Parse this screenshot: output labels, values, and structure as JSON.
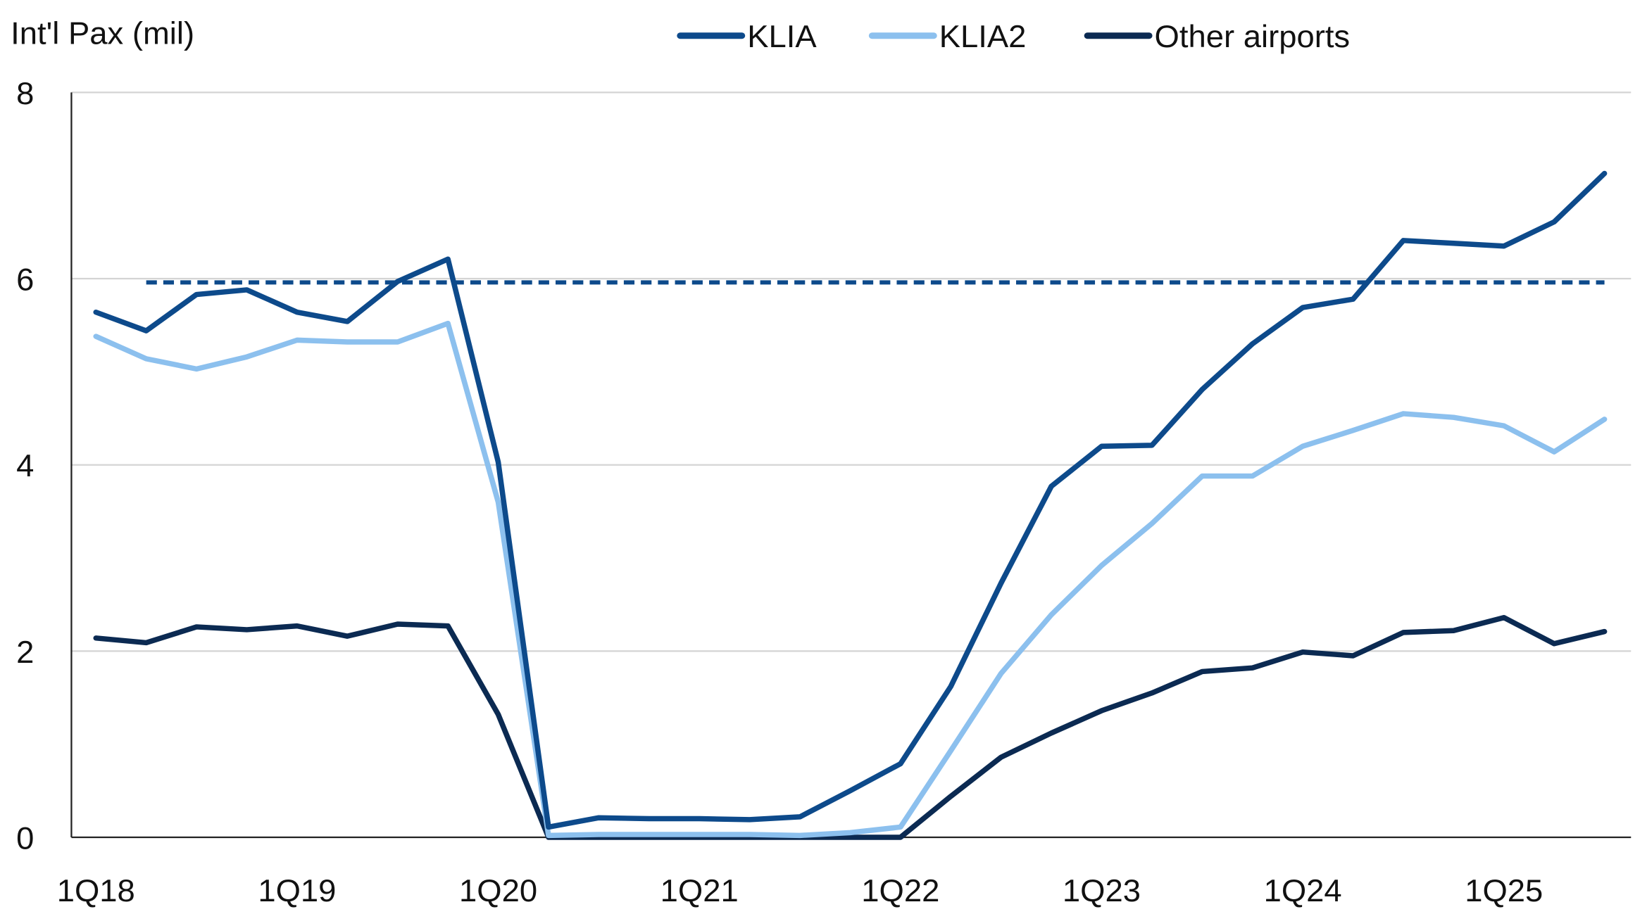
{
  "chart_data": {
    "type": "line",
    "title": "",
    "ylabel": "Int'l Pax (mil)",
    "xlabel": "",
    "ylim": [
      0,
      8
    ],
    "yticks": [
      0,
      2,
      4,
      6,
      8
    ],
    "grid": true,
    "legend_position": "top-center",
    "x": [
      "1Q18",
      "2Q18",
      "3Q18",
      "4Q18",
      "1Q19",
      "2Q19",
      "3Q19",
      "4Q19",
      "1Q20",
      "2Q20",
      "3Q20",
      "4Q20",
      "1Q21",
      "2Q21",
      "3Q21",
      "4Q21",
      "1Q22",
      "2Q22",
      "3Q22",
      "4Q22",
      "1Q23",
      "2Q23",
      "3Q23",
      "4Q23",
      "1Q24",
      "2Q24",
      "3Q24",
      "4Q24",
      "1Q25",
      "2Q25",
      "3Q25"
    ],
    "xtick_labels": [
      "1Q18",
      "1Q19",
      "1Q20",
      "1Q21",
      "1Q22",
      "1Q23",
      "1Q24",
      "1Q25"
    ],
    "series": [
      {
        "name": "KLIA",
        "color": "#0d4a8b",
        "values": [
          5.64,
          5.44,
          5.83,
          5.88,
          5.64,
          5.54,
          5.97,
          6.21,
          4.03,
          0.11,
          0.21,
          0.2,
          0.2,
          0.19,
          0.22,
          0.5,
          0.79,
          1.62,
          2.73,
          3.77,
          4.2,
          4.21,
          4.81,
          5.3,
          5.69,
          5.78,
          6.41,
          6.38,
          6.35,
          6.61,
          7.13
        ]
      },
      {
        "name": "KLIA2",
        "color": "#8cc0ee",
        "values": [
          5.38,
          5.14,
          5.03,
          5.16,
          5.34,
          5.32,
          5.32,
          5.52,
          3.6,
          0.02,
          0.03,
          0.03,
          0.03,
          0.03,
          0.02,
          0.05,
          0.11,
          0.93,
          1.76,
          2.39,
          2.92,
          3.37,
          3.88,
          3.88,
          4.2,
          4.37,
          4.55,
          4.51,
          4.42,
          4.14,
          4.49
        ]
      },
      {
        "name": "Other airports",
        "color": "#0b2a52",
        "values": [
          2.14,
          2.09,
          2.26,
          2.23,
          2.27,
          2.16,
          2.29,
          2.27,
          1.32,
          0,
          0,
          0,
          0,
          0,
          0,
          0,
          0,
          0.44,
          0.86,
          1.12,
          1.36,
          1.55,
          1.78,
          1.82,
          1.99,
          1.95,
          2.2,
          2.22,
          2.36,
          2.08,
          2.21
        ]
      }
    ],
    "reference_line": {
      "value": 5.96,
      "from": "2Q18",
      "to": "3Q25",
      "style": "dashed",
      "color": "#0d4a8b"
    }
  }
}
